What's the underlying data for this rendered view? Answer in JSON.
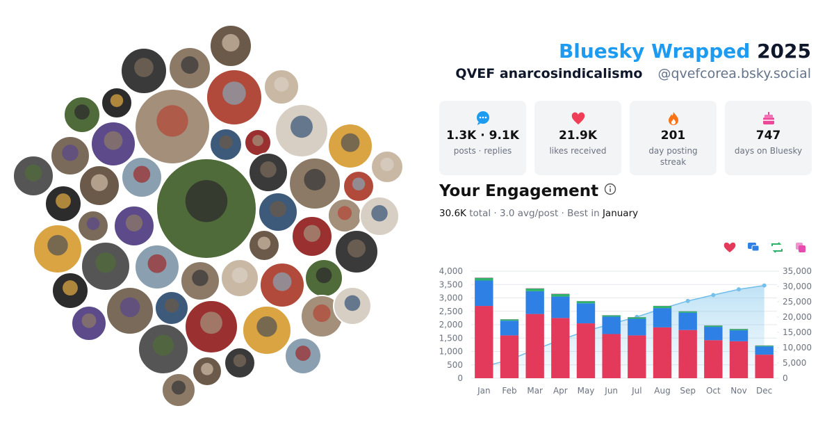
{
  "header": {
    "brand": "Bluesky Wrapped",
    "year": "2025",
    "name": "QVEF anarcosindicalismo",
    "handle": "@qvefcorea.bsky.social"
  },
  "stats": [
    {
      "value": "1.3K · 9.1K",
      "label": "posts · replies"
    },
    {
      "value": "21.9K",
      "label": "likes received"
    },
    {
      "value": "201",
      "label": "day posting streak"
    },
    {
      "value": "747",
      "label": "days on Bluesky"
    }
  ],
  "engagement": {
    "title": "Your Engagement",
    "total": "30.6K",
    "total_label": "total",
    "detail": "· 3.0 avg/post · Best in",
    "best_month": "January"
  },
  "chart_data": {
    "type": "stacked-bar-line",
    "categories": [
      "Jan",
      "Feb",
      "Mar",
      "Apr",
      "May",
      "Jun",
      "Jul",
      "Aug",
      "Sep",
      "Oct",
      "Nov",
      "Dec"
    ],
    "series": [
      {
        "color": "#e33a5c",
        "values": [
          2700,
          1600,
          2400,
          2250,
          2050,
          1650,
          1600,
          1900,
          1800,
          1420,
          1380,
          880
        ]
      },
      {
        "color": "#2f80e4",
        "values": [
          950,
          550,
          850,
          800,
          750,
          650,
          620,
          720,
          650,
          500,
          410,
          310
        ]
      },
      {
        "color": "#2fb36a",
        "values": [
          100,
          50,
          100,
          100,
          80,
          50,
          60,
          80,
          50,
          50,
          50,
          30
        ]
      },
      {
        "color": "#e84bb0",
        "values": [
          10,
          5,
          10,
          10,
          5,
          5,
          5,
          5,
          5,
          5,
          5,
          5
        ]
      },
      {
        "color": "#74c0ea",
        "axis": "y2",
        "values": [
          3800,
          6000,
          9350,
          12500,
          15400,
          17750,
          20050,
          22750,
          25250,
          27200,
          29050,
          30300
        ]
      }
    ],
    "ylim": [
      0,
      4000
    ],
    "yticks": [
      0,
      500,
      {
        "value": 1000,
        "label": "1,000"
      },
      {
        "value": 1500,
        "label": "1,500"
      },
      {
        "value": 2000,
        "label": "2,000"
      },
      {
        "value": 2500,
        "label": "2,500"
      },
      {
        "value": 3000,
        "label": "3,000"
      },
      {
        "value": 3500,
        "label": "3,500"
      },
      {
        "value": 4000,
        "label": "4,000"
      }
    ],
    "y2lim": [
      0,
      35000
    ],
    "y2ticks": [
      0,
      {
        "value": 5000,
        "label": "5,000"
      },
      {
        "value": 10000,
        "label": "10,000"
      },
      {
        "value": 15000,
        "label": "15,000"
      },
      {
        "value": 20000,
        "label": "20,000"
      },
      {
        "value": 25000,
        "label": "25,000"
      },
      {
        "value": 30000,
        "label": "30,000"
      },
      {
        "value": 35000,
        "label": "35,000"
      }
    ],
    "grid": true
  }
}
